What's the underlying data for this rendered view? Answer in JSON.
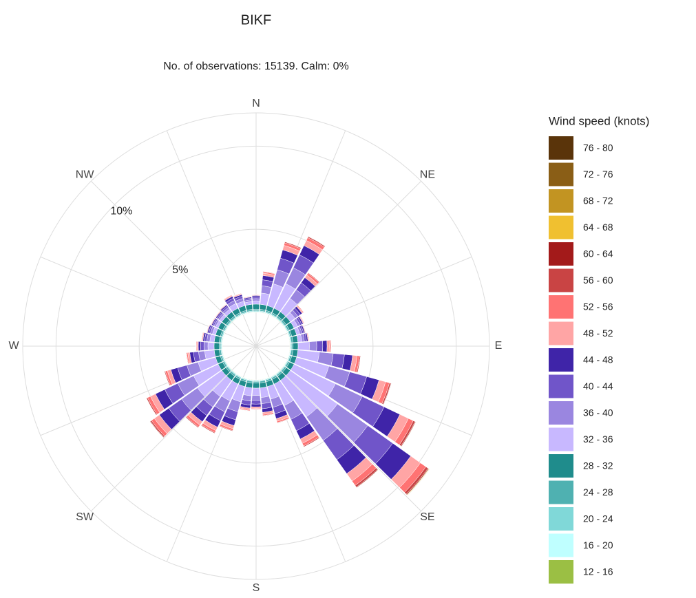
{
  "chart_data": {
    "type": "windrose",
    "title": "BIKF",
    "subtitle": "No. of observations: 15139. Calm: 0%",
    "legend_title": "Wind speed (knots)",
    "x": [
      0,
      10,
      20,
      30,
      40,
      50,
      60,
      70,
      80,
      90,
      100,
      110,
      120,
      130,
      140,
      150,
      160,
      170,
      180,
      190,
      200,
      210,
      220,
      230,
      240,
      250,
      260,
      270,
      280,
      290,
      300,
      310,
      320,
      330,
      340,
      350
    ],
    "xlim": [
      0,
      360
    ],
    "xticks": [
      {
        "value": 0,
        "label": "N"
      },
      {
        "value": 45,
        "label": "NE"
      },
      {
        "value": 90,
        "label": "E"
      },
      {
        "value": 135,
        "label": "SE"
      },
      {
        "value": 180,
        "label": "S"
      },
      {
        "value": 225,
        "label": "SW"
      },
      {
        "value": 270,
        "label": "W"
      },
      {
        "value": 315,
        "label": "NW"
      }
    ],
    "ylim": [
      0,
      12
    ],
    "yticks": [
      {
        "value": 5,
        "label": "5%"
      },
      {
        "value": 10,
        "label": "10%"
      }
    ],
    "grid": true,
    "series": [
      {
        "name": "12 - 16",
        "color": "#9bbf44",
        "values": [
          0.02,
          0.02,
          0.02,
          0.02,
          0.02,
          0.02,
          0.02,
          0.02,
          0.02,
          0.02,
          0.02,
          0.02,
          0.02,
          0.02,
          0.02,
          0.02,
          0.02,
          0.02,
          0.02,
          0.02,
          0.02,
          0.02,
          0.02,
          0.02,
          0.02,
          0.02,
          0.02,
          0.02,
          0.02,
          0.02,
          0.02,
          0.02,
          0.02,
          0.02,
          0.02,
          0.02
        ]
      },
      {
        "name": "16 - 20",
        "color": "#bfffff",
        "values": [
          0.03,
          0.03,
          0.03,
          0.03,
          0.03,
          0.03,
          0.03,
          0.03,
          0.03,
          0.03,
          0.03,
          0.03,
          0.03,
          0.03,
          0.03,
          0.03,
          0.03,
          0.03,
          0.03,
          0.03,
          0.03,
          0.03,
          0.03,
          0.03,
          0.03,
          0.03,
          0.03,
          0.03,
          0.03,
          0.03,
          0.03,
          0.03,
          0.03,
          0.03,
          0.03,
          0.03
        ]
      },
      {
        "name": "20 - 24",
        "color": "#80d8d8",
        "values": [
          0.05,
          0.05,
          0.05,
          0.05,
          0.05,
          0.05,
          0.05,
          0.05,
          0.05,
          0.05,
          0.05,
          0.05,
          0.05,
          0.05,
          0.05,
          0.05,
          0.05,
          0.05,
          0.05,
          0.05,
          0.05,
          0.05,
          0.05,
          0.05,
          0.05,
          0.05,
          0.05,
          0.05,
          0.05,
          0.05,
          0.05,
          0.05,
          0.05,
          0.05,
          0.05,
          0.05
        ]
      },
      {
        "name": "24 - 28",
        "color": "#4fb1b1",
        "values": [
          0.1,
          0.1,
          0.1,
          0.1,
          0.1,
          0.1,
          0.1,
          0.1,
          0.1,
          0.1,
          0.1,
          0.1,
          0.1,
          0.1,
          0.1,
          0.1,
          0.1,
          0.1,
          0.1,
          0.1,
          0.1,
          0.1,
          0.1,
          0.1,
          0.1,
          0.1,
          0.1,
          0.1,
          0.1,
          0.1,
          0.1,
          0.1,
          0.1,
          0.1,
          0.1,
          0.1
        ]
      },
      {
        "name": "28 - 32",
        "color": "#1f8c8c",
        "values": [
          0.3,
          0.3,
          0.3,
          0.3,
          0.3,
          0.3,
          0.3,
          0.3,
          0.3,
          0.3,
          0.3,
          0.3,
          0.3,
          0.3,
          0.3,
          0.3,
          0.3,
          0.3,
          0.3,
          0.3,
          0.3,
          0.3,
          0.3,
          0.3,
          0.3,
          0.3,
          0.3,
          0.3,
          0.3,
          0.3,
          0.3,
          0.3,
          0.3,
          0.3,
          0.3,
          0.3
        ]
      },
      {
        "name": "32 - 36",
        "color": "#c8b8ff",
        "values": [
          0.2,
          0.68,
          1.36,
          1.63,
          0.99,
          0.34,
          0.24,
          0.2,
          0.24,
          0.68,
          1.29,
          2.01,
          2.75,
          3.47,
          2.69,
          1.43,
          0.78,
          0.58,
          0.44,
          0.48,
          0.95,
          1.12,
          1.19,
          1.8,
          1.63,
          1.09,
          0.58,
          0.37,
          0.27,
          0.2,
          0.17,
          0.17,
          0.2,
          0.31,
          0.27,
          0.17
        ]
      },
      {
        "name": "36 - 40",
        "color": "#9a86e0",
        "values": [
          0.13,
          0.44,
          0.88,
          1.06,
          0.64,
          0.22,
          0.15,
          0.13,
          0.15,
          0.44,
          0.84,
          1.3,
          1.78,
          2.24,
          1.74,
          0.92,
          0.51,
          0.37,
          0.29,
          0.31,
          0.62,
          0.73,
          0.77,
          1.17,
          1.06,
          0.7,
          0.37,
          0.24,
          0.18,
          0.13,
          0.11,
          0.11,
          0.13,
          0.2,
          0.18,
          0.11
        ]
      },
      {
        "name": "40 - 44",
        "color": "#7055c9",
        "values": [
          0.11,
          0.36,
          0.72,
          0.86,
          0.52,
          0.18,
          0.13,
          0.11,
          0.13,
          0.36,
          0.68,
          1.06,
          1.46,
          1.84,
          1.42,
          0.76,
          0.41,
          0.31,
          0.23,
          0.25,
          0.5,
          0.59,
          0.63,
          0.95,
          0.86,
          0.58,
          0.31,
          0.2,
          0.14,
          0.11,
          0.09,
          0.09,
          0.11,
          0.16,
          0.14,
          0.09
        ]
      },
      {
        "name": "44 - 48",
        "color": "#3f24a8",
        "values": [
          0.08,
          0.26,
          0.52,
          0.62,
          0.38,
          0.13,
          0.09,
          0.08,
          0.09,
          0.26,
          0.49,
          0.77,
          1.05,
          1.33,
          1.03,
          0.55,
          0.3,
          0.22,
          0.17,
          0.18,
          0.36,
          0.43,
          0.46,
          0.69,
          0.62,
          0.42,
          0.22,
          0.14,
          0.1,
          0.08,
          0.07,
          0.07,
          0.08,
          0.12,
          0.1,
          0.07
        ]
      },
      {
        "name": "48 - 52",
        "color": "#ffa5a5",
        "values": [
          0.04,
          0.14,
          0.28,
          0.34,
          0.2,
          0.07,
          0.05,
          0.04,
          0.05,
          0.14,
          0.27,
          0.41,
          0.57,
          0.71,
          0.55,
          0.29,
          0.16,
          0.12,
          0.09,
          0.1,
          0.2,
          0.23,
          0.25,
          0.37,
          0.34,
          0.22,
          0.12,
          0.08,
          0.06,
          0.04,
          0.04,
          0.04,
          0.04,
          0.06,
          0.06,
          0.04
        ]
      },
      {
        "name": "52 - 56",
        "color": "#ff7373",
        "values": [
          0.02,
          0.08,
          0.16,
          0.19,
          0.12,
          0.04,
          0.03,
          0.02,
          0.03,
          0.08,
          0.15,
          0.24,
          0.32,
          0.41,
          0.32,
          0.17,
          0.09,
          0.07,
          0.05,
          0.06,
          0.11,
          0.13,
          0.14,
          0.21,
          0.19,
          0.13,
          0.07,
          0.04,
          0.03,
          0.02,
          0.02,
          0.02,
          0.02,
          0.04,
          0.03,
          0.02
        ]
      },
      {
        "name": "56 - 60",
        "color": "#c94444",
        "values": [
          0.01,
          0.03,
          0.06,
          0.07,
          0.04,
          0.02,
          0.01,
          0.01,
          0.01,
          0.03,
          0.06,
          0.09,
          0.12,
          0.15,
          0.12,
          0.06,
          0.03,
          0.03,
          0.02,
          0.02,
          0.04,
          0.05,
          0.05,
          0.08,
          0.07,
          0.05,
          0.03,
          0.02,
          0.01,
          0.01,
          0.01,
          0.01,
          0.01,
          0.01,
          0.01,
          0.01
        ]
      },
      {
        "name": "60 - 64",
        "color": "#a31a1a",
        "values": [
          0,
          0.01,
          0.02,
          0.02,
          0.01,
          0,
          0,
          0,
          0,
          0.01,
          0.02,
          0.03,
          0.04,
          0.05,
          0.04,
          0.02,
          0.01,
          0.01,
          0.01,
          0.01,
          0.01,
          0.02,
          0.02,
          0.03,
          0.02,
          0.02,
          0.01,
          0,
          0,
          0,
          0,
          0,
          0,
          0,
          0,
          0
        ]
      },
      {
        "name": "64 - 68",
        "color": "#f0c030",
        "values": [
          0,
          0,
          0,
          0.01,
          0,
          0,
          0,
          0,
          0,
          0,
          0,
          0.01,
          0.02,
          0.03,
          0.02,
          0,
          0,
          0,
          0,
          0,
          0,
          0,
          0,
          0.01,
          0,
          0,
          0,
          0,
          0,
          0,
          0,
          0,
          0,
          0,
          0,
          0
        ]
      },
      {
        "name": "68 - 72",
        "color": "#c29422",
        "values": [
          0,
          0,
          0,
          0,
          0,
          0,
          0,
          0,
          0,
          0,
          0,
          0,
          0.01,
          0.02,
          0.01,
          0,
          0,
          0,
          0,
          0,
          0,
          0,
          0,
          0,
          0,
          0,
          0,
          0,
          0,
          0,
          0,
          0,
          0,
          0,
          0,
          0
        ]
      },
      {
        "name": "72 - 76",
        "color": "#8a5e16",
        "values": [
          0,
          0,
          0,
          0,
          0,
          0,
          0,
          0,
          0,
          0,
          0,
          0,
          0,
          0.01,
          0,
          0,
          0,
          0,
          0,
          0,
          0,
          0,
          0,
          0,
          0,
          0,
          0,
          0,
          0,
          0,
          0,
          0,
          0,
          0,
          0,
          0
        ]
      },
      {
        "name": "76 - 80",
        "color": "#5a340a",
        "values": [
          0,
          0,
          0,
          0,
          0,
          0,
          0,
          0,
          0,
          0,
          0,
          0,
          0,
          0.01,
          0,
          0,
          0,
          0,
          0,
          0,
          0,
          0,
          0,
          0,
          0,
          0,
          0,
          0,
          0,
          0,
          0,
          0,
          0,
          0,
          0,
          0
        ]
      }
    ]
  }
}
